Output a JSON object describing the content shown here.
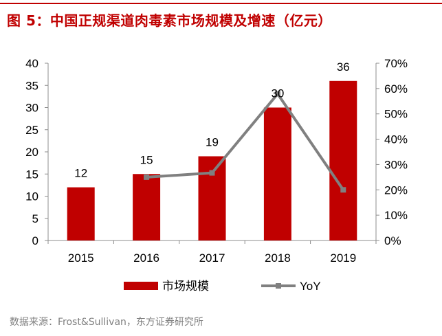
{
  "figure": {
    "title": "图 5：中国正规渠道肉毒素市场规模及增速（亿元）",
    "source": "数据来源：Frost&Sullivan，东方证券研究所"
  },
  "chart_data": {
    "type": "bar",
    "categories": [
      "2015",
      "2016",
      "2017",
      "2018",
      "2019"
    ],
    "series": [
      {
        "name": "市场规模",
        "type": "bar",
        "axis": "left",
        "values": [
          12,
          15,
          19,
          30,
          36
        ],
        "labels": [
          "12",
          "15",
          "19",
          "30",
          "36"
        ]
      },
      {
        "name": "YoY",
        "type": "line",
        "axis": "right",
        "values": [
          null,
          0.25,
          0.267,
          0.579,
          0.2
        ]
      }
    ],
    "ylim": [
      0,
      40
    ],
    "y_ticks": [
      "0",
      "5",
      "10",
      "15",
      "20",
      "25",
      "30",
      "35",
      "40"
    ],
    "y2lim": [
      0,
      0.7
    ],
    "y2_ticks": [
      "0%",
      "10%",
      "20%",
      "30%",
      "40%",
      "50%",
      "60%",
      "70%"
    ],
    "legend_position": "bottom",
    "grid": false,
    "colors": {
      "bar": "#c00000",
      "line": "#808080",
      "title": "#c00000",
      "axis": "#8c8c8c",
      "text": "#000000",
      "source": "#7f7f7f"
    }
  }
}
